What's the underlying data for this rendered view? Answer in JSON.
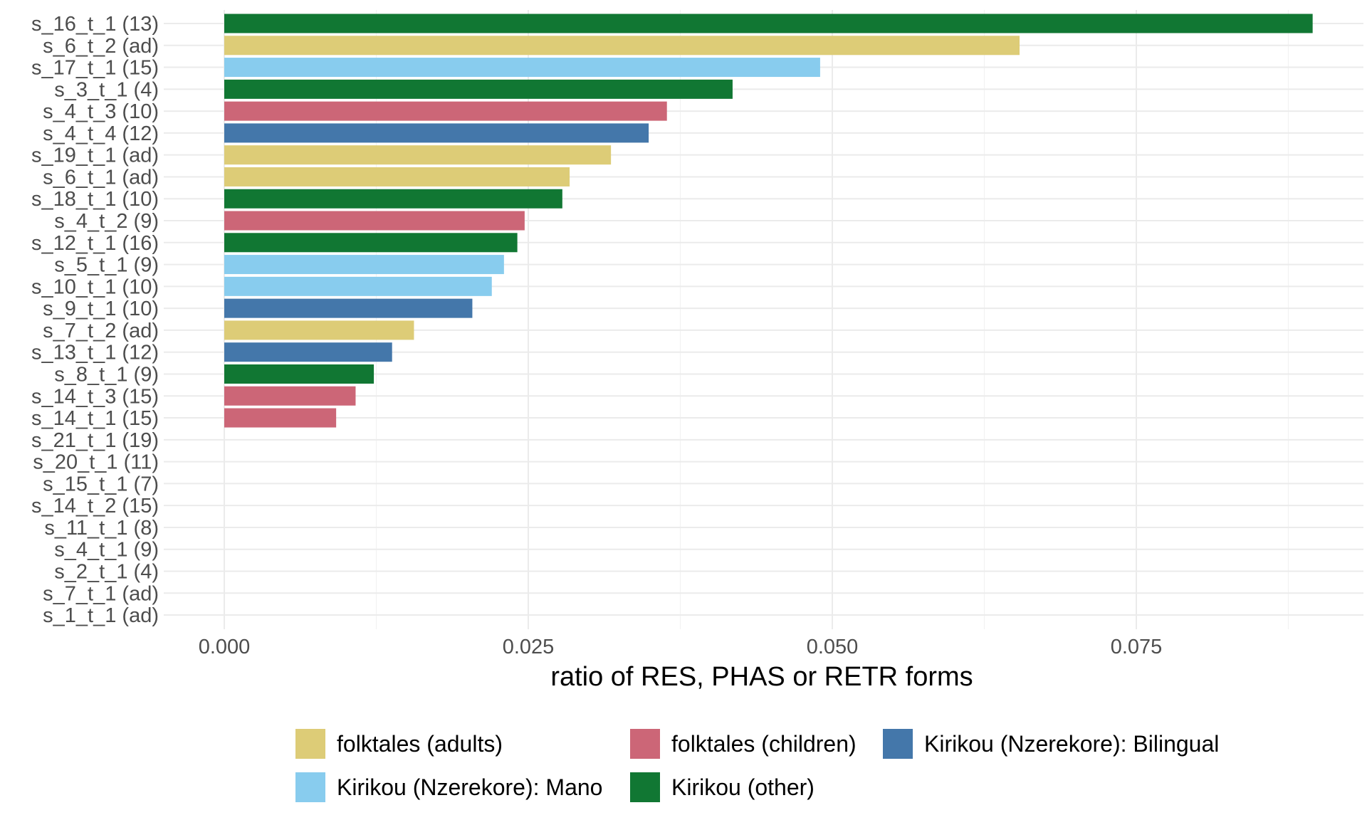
{
  "chart_data": {
    "type": "bar",
    "orientation": "horizontal",
    "title": "",
    "xlabel": "ratio of RES, PHAS or RETR forms",
    "ylabel": "",
    "xlim": [
      0,
      0.0945
    ],
    "xticks": [
      0.0,
      0.025,
      0.05,
      0.075
    ],
    "xtick_labels": [
      "0.000",
      "0.025",
      "0.050",
      "0.075"
    ],
    "grid": true,
    "legend_position": "bottom",
    "legend": [
      {
        "group": "adults",
        "label": "folktales (adults)",
        "color": "#DDCC77"
      },
      {
        "group": "children",
        "label": "folktales (children)",
        "color": "#CC6677"
      },
      {
        "group": "bilingual",
        "label": "Kirikou (Nzerekore): Bilingual",
        "color": "#4477AA"
      },
      {
        "group": "mano",
        "label": "Kirikou (Nzerekore): Mano",
        "color": "#88CCEE"
      },
      {
        "group": "other",
        "label": "Kirikou (other)",
        "color": "#117733"
      }
    ],
    "bars": [
      {
        "label": "s_16_t_1 (13)",
        "value": 0.0895,
        "group": "other"
      },
      {
        "label": "s_6_t_2 (ad)",
        "value": 0.0654,
        "group": "adults"
      },
      {
        "label": "s_17_t_1 (15)",
        "value": 0.049,
        "group": "mano"
      },
      {
        "label": "s_3_t_1 (4)",
        "value": 0.0418,
        "group": "other"
      },
      {
        "label": "s_4_t_3 (10)",
        "value": 0.0364,
        "group": "children"
      },
      {
        "label": "s_4_t_4 (12)",
        "value": 0.0349,
        "group": "bilingual"
      },
      {
        "label": "s_19_t_1 (ad)",
        "value": 0.0318,
        "group": "adults"
      },
      {
        "label": "s_6_t_1 (ad)",
        "value": 0.0284,
        "group": "adults"
      },
      {
        "label": "s_18_t_1 (10)",
        "value": 0.0278,
        "group": "other"
      },
      {
        "label": "s_4_t_2 (9)",
        "value": 0.0247,
        "group": "children"
      },
      {
        "label": "s_12_t_1 (16)",
        "value": 0.0241,
        "group": "other"
      },
      {
        "label": "s_5_t_1 (9)",
        "value": 0.023,
        "group": "mano"
      },
      {
        "label": "s_10_t_1 (10)",
        "value": 0.022,
        "group": "mano"
      },
      {
        "label": "s_9_t_1 (10)",
        "value": 0.0204,
        "group": "bilingual"
      },
      {
        "label": "s_7_t_2 (ad)",
        "value": 0.0156,
        "group": "adults"
      },
      {
        "label": "s_13_t_1 (12)",
        "value": 0.0138,
        "group": "bilingual"
      },
      {
        "label": "s_8_t_1 (9)",
        "value": 0.0123,
        "group": "other"
      },
      {
        "label": "s_14_t_3 (15)",
        "value": 0.0108,
        "group": "children"
      },
      {
        "label": "s_14_t_1 (15)",
        "value": 0.0092,
        "group": "children"
      },
      {
        "label": "s_21_t_1 (19)",
        "value": 0,
        "group": "other"
      },
      {
        "label": "s_20_t_1 (11)",
        "value": 0,
        "group": "other"
      },
      {
        "label": "s_15_t_1 (7)",
        "value": 0,
        "group": "other"
      },
      {
        "label": "s_14_t_2 (15)",
        "value": 0,
        "group": "children"
      },
      {
        "label": "s_11_t_1 (8)",
        "value": 0,
        "group": "other"
      },
      {
        "label": "s_4_t_1 (9)",
        "value": 0,
        "group": "children"
      },
      {
        "label": "s_2_t_1 (4)",
        "value": 0,
        "group": "other"
      },
      {
        "label": "s_7_t_1 (ad)",
        "value": 0,
        "group": "adults"
      },
      {
        "label": "s_1_t_1 (ad)",
        "value": 0,
        "group": "adults"
      }
    ]
  }
}
